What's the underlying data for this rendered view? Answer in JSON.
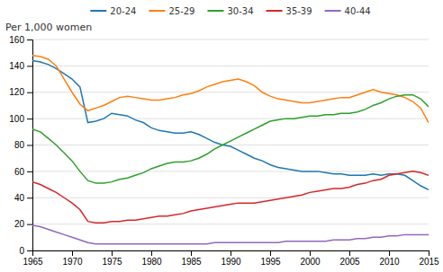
{
  "chart_data": {
    "type": "line",
    "ylabel": "Per 1,000 women",
    "x": [
      1965,
      1966,
      1967,
      1968,
      1969,
      1970,
      1971,
      1972,
      1973,
      1974,
      1975,
      1976,
      1977,
      1978,
      1979,
      1980,
      1981,
      1982,
      1983,
      1984,
      1985,
      1986,
      1987,
      1988,
      1989,
      1990,
      1991,
      1992,
      1993,
      1994,
      1995,
      1996,
      1997,
      1998,
      1999,
      2000,
      2001,
      2002,
      2003,
      2004,
      2005,
      2006,
      2007,
      2008,
      2009,
      2010,
      2011,
      2012,
      2013,
      2014,
      2015
    ],
    "series": [
      {
        "name": "20-24",
        "values": [
          144,
          143,
          141,
          138,
          134,
          130,
          124,
          97,
          98,
          100,
          104,
          103,
          102,
          99,
          97,
          93,
          91,
          90,
          89,
          89,
          90,
          88,
          85,
          82,
          80,
          79,
          76,
          73,
          70,
          68,
          65,
          63,
          62,
          61,
          60,
          60,
          60,
          59,
          58,
          58,
          57,
          57,
          57,
          58,
          57,
          58,
          58,
          57,
          53,
          49,
          46
        ]
      },
      {
        "name": "25-29",
        "values": [
          148,
          147,
          145,
          140,
          130,
          120,
          111,
          106,
          108,
          110,
          113,
          116,
          117,
          116,
          115,
          114,
          114,
          115,
          116,
          118,
          119,
          121,
          124,
          126,
          128,
          129,
          130,
          128,
          125,
          120,
          117,
          115,
          114,
          113,
          112,
          112,
          113,
          114,
          115,
          116,
          116,
          118,
          120,
          122,
          120,
          119,
          118,
          116,
          113,
          108,
          97
        ]
      },
      {
        "name": "30-34",
        "values": [
          92,
          90,
          85,
          80,
          74,
          68,
          60,
          53,
          51,
          51,
          52,
          54,
          55,
          57,
          59,
          62,
          64,
          66,
          67,
          67,
          68,
          70,
          73,
          77,
          80,
          83,
          86,
          89,
          92,
          95,
          98,
          99,
          100,
          100,
          101,
          102,
          102,
          103,
          103,
          104,
          104,
          105,
          107,
          110,
          112,
          115,
          117,
          118,
          118,
          115,
          109
        ]
      },
      {
        "name": "35-39",
        "values": [
          52,
          50,
          47,
          44,
          40,
          36,
          31,
          22,
          21,
          21,
          22,
          22,
          23,
          23,
          24,
          25,
          26,
          26,
          27,
          28,
          30,
          31,
          32,
          33,
          34,
          35,
          36,
          36,
          36,
          37,
          38,
          39,
          40,
          41,
          42,
          44,
          45,
          46,
          47,
          47,
          48,
          50,
          51,
          53,
          54,
          57,
          58,
          59,
          60,
          59,
          57
        ]
      },
      {
        "name": "40-44",
        "values": [
          19,
          18,
          16,
          14,
          12,
          10,
          8,
          6,
          5,
          5,
          5,
          5,
          5,
          5,
          5,
          5,
          5,
          5,
          5,
          5,
          5,
          5,
          5,
          6,
          6,
          6,
          6,
          6,
          6,
          6,
          6,
          6,
          7,
          7,
          7,
          7,
          7,
          7,
          8,
          8,
          8,
          9,
          9,
          10,
          10,
          11,
          11,
          12,
          12,
          12,
          12
        ]
      }
    ],
    "xlim": [
      1965,
      2015
    ],
    "xticks": [
      1965,
      1970,
      1975,
      1980,
      1985,
      1990,
      1995,
      2000,
      2005,
      2010,
      2015
    ],
    "ylim": [
      0,
      160
    ],
    "yticks": [
      0,
      20,
      40,
      60,
      80,
      100,
      120,
      140,
      160
    ],
    "grid": true,
    "legend": "top"
  }
}
